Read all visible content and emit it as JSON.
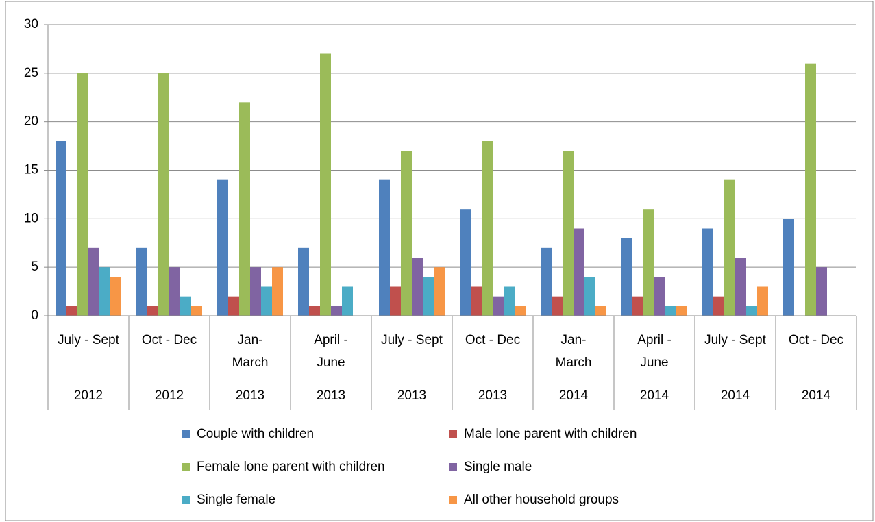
{
  "chart_data": {
    "type": "bar",
    "categories": [
      "July - Sept",
      "Oct - Dec",
      "Jan-\nMarch",
      "April -\nJune",
      "July - Sept",
      "Oct - Dec",
      "Jan-\nMarch",
      "April -\nJune",
      "July - Sept",
      "Oct - Dec"
    ],
    "years": [
      "2012",
      "2012",
      "2013",
      "2013",
      "2013",
      "2013",
      "2014",
      "2014",
      "2014",
      "2014"
    ],
    "series": [
      {
        "name": "Couple with children",
        "color": "#4f81bd",
        "values": [
          18,
          7,
          14,
          7,
          14,
          11,
          7,
          8,
          9,
          10
        ]
      },
      {
        "name": "Male lone parent  with children",
        "color": "#c0504d",
        "values": [
          1,
          1,
          2,
          1,
          3,
          3,
          2,
          2,
          2,
          0
        ]
      },
      {
        "name": "Female lone parent with children",
        "color": "#9bbb59",
        "values": [
          25,
          25,
          22,
          27,
          17,
          18,
          17,
          11,
          14,
          26
        ]
      },
      {
        "name": "Single male",
        "color": "#8064a2",
        "values": [
          7,
          5,
          5,
          1,
          6,
          2,
          9,
          4,
          6,
          5
        ]
      },
      {
        "name": "Single female",
        "color": "#4bacc6",
        "values": [
          5,
          2,
          3,
          3,
          4,
          3,
          4,
          1,
          1,
          0
        ]
      },
      {
        "name": "All other household groups",
        "color": "#f79646",
        "values": [
          4,
          1,
          5,
          0,
          5,
          1,
          1,
          1,
          3,
          0
        ]
      }
    ],
    "ylim": [
      0,
      30
    ],
    "yticks": [
      0,
      5,
      10,
      15,
      20,
      25,
      30
    ],
    "grid": true,
    "legend": "bottom"
  }
}
